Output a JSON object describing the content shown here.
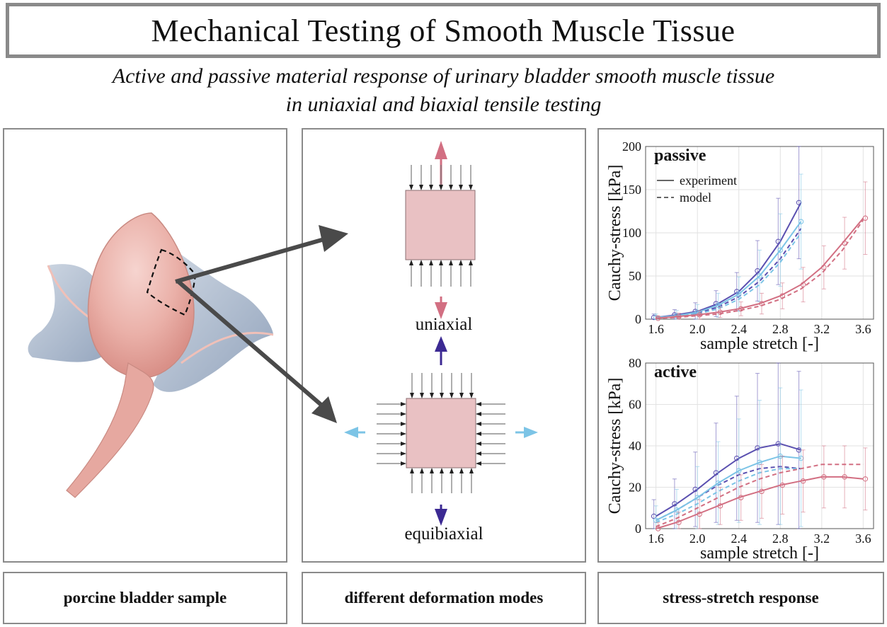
{
  "title": "Mechanical Testing of Smooth Muscle Tissue",
  "subtitle_line1": "Active and passive material response of urinary bladder smooth muscle tissue",
  "subtitle_line2": "in uniaxial and biaxial tensile testing",
  "captions": {
    "left": "porcine bladder sample",
    "mid": "different deformation modes",
    "right": "stress-stretch response"
  },
  "modes": {
    "uniaxial": "uniaxial",
    "equibiaxial": "equibiaxial"
  },
  "colors": {
    "red": "#d26f82",
    "navy": "#3c2a93",
    "lightblue": "#7cc4e6",
    "purple": "#5a4fb0",
    "specimen": "#e9c1c3",
    "arrow": "#4a4a4a"
  },
  "chart_data": [
    {
      "type": "line",
      "title": "passive",
      "xlabel": "sample stretch [-]",
      "ylabel": "Cauchy-stress [kPa]",
      "xlim": [
        1.5,
        3.7
      ],
      "ylim": [
        0,
        200
      ],
      "xticks": [
        "1.6",
        "2.0",
        "2.4",
        "2.8",
        "3.2",
        "3.6"
      ],
      "yticks": [
        "0",
        "50",
        "100",
        "150",
        "200"
      ],
      "legend": [
        {
          "label": "experiment",
          "style": "solid"
        },
        {
          "label": "model",
          "style": "dashed"
        }
      ],
      "series": [
        {
          "color": "#5a4fb0",
          "x": [
            1.6,
            1.8,
            2.0,
            2.2,
            2.4,
            2.6,
            2.8,
            3.0
          ],
          "experiment": [
            2,
            5,
            9,
            18,
            32,
            56,
            90,
            135
          ],
          "model": [
            1,
            3,
            7,
            14,
            26,
            44,
            70,
            105
          ],
          "err": [
            4,
            6,
            10,
            15,
            22,
            35,
            50,
            65
          ]
        },
        {
          "color": "#7cc4e6",
          "x": [
            1.6,
            1.8,
            2.0,
            2.2,
            2.4,
            2.6,
            2.8,
            3.0
          ],
          "experiment": [
            2,
            4,
            8,
            16,
            29,
            50,
            80,
            113
          ],
          "model": [
            1,
            3,
            6,
            12,
            23,
            40,
            66,
            100
          ],
          "err": [
            4,
            6,
            9,
            14,
            20,
            30,
            42,
            55
          ]
        },
        {
          "color": "#d26f82",
          "x": [
            1.6,
            1.8,
            2.0,
            2.2,
            2.4,
            2.6,
            2.8,
            3.0,
            3.2,
            3.4,
            3.6
          ],
          "experiment": [
            1,
            3,
            5,
            8,
            12,
            18,
            27,
            40,
            60,
            88,
            117
          ],
          "model": [
            1,
            2,
            4,
            6,
            10,
            15,
            23,
            35,
            53,
            80,
            115
          ],
          "err": [
            3,
            4,
            5,
            6,
            8,
            12,
            15,
            20,
            25,
            30,
            42
          ]
        }
      ]
    },
    {
      "type": "line",
      "title": "active",
      "xlabel": "sample stretch [-]",
      "ylabel": "Cauchy-stress [kPa]",
      "xlim": [
        1.5,
        3.7
      ],
      "ylim": [
        0,
        80
      ],
      "xticks": [
        "1.6",
        "2.0",
        "2.4",
        "2.8",
        "3.2",
        "3.6"
      ],
      "yticks": [
        "0",
        "20",
        "40",
        "60",
        "80"
      ],
      "series": [
        {
          "color": "#5a4fb0",
          "x": [
            1.6,
            1.8,
            2.0,
            2.2,
            2.4,
            2.6,
            2.8,
            3.0
          ],
          "experiment": [
            6,
            12,
            19,
            27,
            34,
            39,
            41,
            38
          ],
          "model": [
            4,
            9,
            15,
            21,
            26,
            29,
            30,
            29
          ],
          "err": [
            8,
            12,
            18,
            24,
            30,
            36,
            39,
            38
          ]
        },
        {
          "color": "#7cc4e6",
          "x": [
            1.6,
            1.8,
            2.0,
            2.2,
            2.4,
            2.6,
            2.8,
            3.0
          ],
          "experiment": [
            4,
            9,
            15,
            22,
            28,
            32,
            35,
            34
          ],
          "model": [
            3,
            7,
            12,
            18,
            23,
            27,
            29,
            29
          ],
          "err": [
            7,
            10,
            15,
            20,
            25,
            30,
            33,
            33
          ]
        },
        {
          "color": "#d26f82",
          "x": [
            1.6,
            1.8,
            2.0,
            2.2,
            2.4,
            2.6,
            2.8,
            3.0,
            3.2,
            3.4,
            3.6
          ],
          "experiment": [
            0,
            3,
            7,
            11,
            15,
            18,
            21,
            23,
            25,
            25,
            24
          ],
          "model": [
            1,
            5,
            10,
            15,
            20,
            24,
            27,
            29,
            31,
            31,
            31
          ],
          "err": [
            3,
            5,
            7,
            9,
            11,
            13,
            14,
            15,
            15,
            15,
            15
          ]
        }
      ]
    }
  ]
}
